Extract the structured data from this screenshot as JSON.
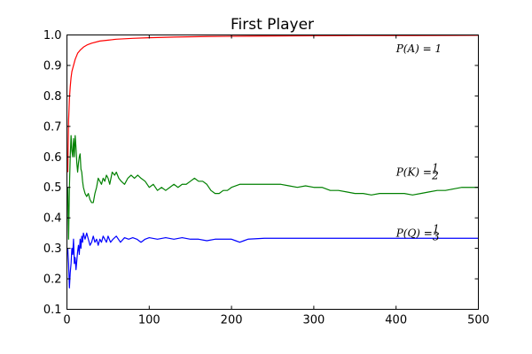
{
  "chart_data": {
    "type": "line",
    "title": "First Player",
    "xlabel": "",
    "ylabel": "",
    "xlim": [
      0,
      500
    ],
    "ylim": [
      0.1,
      1.0
    ],
    "xticks": [
      0,
      100,
      200,
      300,
      400,
      500
    ],
    "yticks": [
      0.1,
      0.2,
      0.3,
      0.4,
      0.5,
      0.6,
      0.7,
      0.8,
      0.9,
      1.0
    ],
    "xtick_labels": [
      "0",
      "100",
      "200",
      "300",
      "400",
      "500"
    ],
    "ytick_labels": [
      "0.1",
      "0.2",
      "0.3",
      "0.4",
      "0.5",
      "0.6",
      "0.7",
      "0.8",
      "0.9",
      "1.0"
    ],
    "grid": false,
    "series": [
      {
        "color": "#ff0000",
        "points": [
          [
            1,
            0.55
          ],
          [
            2,
            0.72
          ],
          [
            3,
            0.79
          ],
          [
            4,
            0.83
          ],
          [
            5,
            0.86
          ],
          [
            6,
            0.88
          ],
          [
            8,
            0.9
          ],
          [
            10,
            0.92
          ],
          [
            13,
            0.94
          ],
          [
            16,
            0.95
          ],
          [
            20,
            0.96
          ],
          [
            25,
            0.968
          ],
          [
            30,
            0.973
          ],
          [
            40,
            0.98
          ],
          [
            50,
            0.983
          ],
          [
            60,
            0.986
          ],
          [
            80,
            0.989
          ],
          [
            100,
            0.991
          ],
          [
            130,
            0.993
          ],
          [
            170,
            0.995
          ],
          [
            220,
            0.996
          ],
          [
            280,
            0.997
          ],
          [
            350,
            0.998
          ],
          [
            420,
            0.998
          ],
          [
            500,
            0.999
          ]
        ]
      },
      {
        "color": "#008000",
        "points": [
          [
            1,
            0.5
          ],
          [
            2,
            0.33
          ],
          [
            3,
            0.5
          ],
          [
            4,
            0.6
          ],
          [
            5,
            0.67
          ],
          [
            6,
            0.62
          ],
          [
            7,
            0.6
          ],
          [
            8,
            0.66
          ],
          [
            9,
            0.6
          ],
          [
            10,
            0.67
          ],
          [
            11,
            0.63
          ],
          [
            12,
            0.58
          ],
          [
            13,
            0.55
          ],
          [
            14,
            0.58
          ],
          [
            15,
            0.6
          ],
          [
            16,
            0.61
          ],
          [
            17,
            0.56
          ],
          [
            18,
            0.55
          ],
          [
            19,
            0.52
          ],
          [
            20,
            0.5
          ],
          [
            22,
            0.48
          ],
          [
            24,
            0.47
          ],
          [
            26,
            0.48
          ],
          [
            28,
            0.46
          ],
          [
            30,
            0.45
          ],
          [
            32,
            0.45
          ],
          [
            34,
            0.48
          ],
          [
            36,
            0.5
          ],
          [
            38,
            0.53
          ],
          [
            40,
            0.52
          ],
          [
            42,
            0.51
          ],
          [
            44,
            0.53
          ],
          [
            46,
            0.52
          ],
          [
            48,
            0.54
          ],
          [
            50,
            0.53
          ],
          [
            52,
            0.51
          ],
          [
            55,
            0.55
          ],
          [
            58,
            0.54
          ],
          [
            60,
            0.55
          ],
          [
            63,
            0.53
          ],
          [
            66,
            0.52
          ],
          [
            70,
            0.51
          ],
          [
            74,
            0.53
          ],
          [
            78,
            0.54
          ],
          [
            82,
            0.53
          ],
          [
            86,
            0.54
          ],
          [
            90,
            0.53
          ],
          [
            95,
            0.52
          ],
          [
            100,
            0.5
          ],
          [
            105,
            0.51
          ],
          [
            110,
            0.49
          ],
          [
            115,
            0.5
          ],
          [
            120,
            0.49
          ],
          [
            125,
            0.5
          ],
          [
            130,
            0.51
          ],
          [
            135,
            0.5
          ],
          [
            140,
            0.51
          ],
          [
            145,
            0.51
          ],
          [
            150,
            0.52
          ],
          [
            155,
            0.53
          ],
          [
            160,
            0.52
          ],
          [
            165,
            0.52
          ],
          [
            170,
            0.51
          ],
          [
            175,
            0.49
          ],
          [
            180,
            0.48
          ],
          [
            185,
            0.48
          ],
          [
            190,
            0.49
          ],
          [
            195,
            0.49
          ],
          [
            200,
            0.5
          ],
          [
            210,
            0.51
          ],
          [
            220,
            0.51
          ],
          [
            230,
            0.51
          ],
          [
            240,
            0.51
          ],
          [
            250,
            0.51
          ],
          [
            260,
            0.51
          ],
          [
            270,
            0.505
          ],
          [
            280,
            0.5
          ],
          [
            290,
            0.505
          ],
          [
            300,
            0.5
          ],
          [
            310,
            0.5
          ],
          [
            320,
            0.49
          ],
          [
            330,
            0.49
          ],
          [
            340,
            0.485
          ],
          [
            350,
            0.48
          ],
          [
            360,
            0.48
          ],
          [
            370,
            0.475
          ],
          [
            380,
            0.48
          ],
          [
            390,
            0.48
          ],
          [
            400,
            0.48
          ],
          [
            410,
            0.48
          ],
          [
            420,
            0.475
          ],
          [
            430,
            0.48
          ],
          [
            440,
            0.485
          ],
          [
            450,
            0.49
          ],
          [
            460,
            0.49
          ],
          [
            470,
            0.495
          ],
          [
            480,
            0.5
          ],
          [
            490,
            0.5
          ],
          [
            500,
            0.5
          ]
        ]
      },
      {
        "color": "#0000ff",
        "points": [
          [
            1,
            0.3
          ],
          [
            2,
            0.25
          ],
          [
            3,
            0.17
          ],
          [
            4,
            0.22
          ],
          [
            5,
            0.25
          ],
          [
            6,
            0.3
          ],
          [
            7,
            0.28
          ],
          [
            8,
            0.33
          ],
          [
            9,
            0.25
          ],
          [
            10,
            0.27
          ],
          [
            11,
            0.23
          ],
          [
            12,
            0.26
          ],
          [
            13,
            0.29
          ],
          [
            14,
            0.31
          ],
          [
            15,
            0.28
          ],
          [
            16,
            0.33
          ],
          [
            17,
            0.3
          ],
          [
            18,
            0.34
          ],
          [
            19,
            0.32
          ],
          [
            20,
            0.35
          ],
          [
            22,
            0.33
          ],
          [
            24,
            0.35
          ],
          [
            26,
            0.33
          ],
          [
            28,
            0.31
          ],
          [
            30,
            0.32
          ],
          [
            32,
            0.34
          ],
          [
            34,
            0.32
          ],
          [
            36,
            0.33
          ],
          [
            38,
            0.31
          ],
          [
            40,
            0.33
          ],
          [
            42,
            0.32
          ],
          [
            44,
            0.34
          ],
          [
            46,
            0.33
          ],
          [
            48,
            0.32
          ],
          [
            50,
            0.34
          ],
          [
            53,
            0.32
          ],
          [
            56,
            0.33
          ],
          [
            60,
            0.34
          ],
          [
            65,
            0.32
          ],
          [
            70,
            0.335
          ],
          [
            75,
            0.33
          ],
          [
            80,
            0.335
          ],
          [
            85,
            0.33
          ],
          [
            90,
            0.32
          ],
          [
            95,
            0.33
          ],
          [
            100,
            0.335
          ],
          [
            110,
            0.33
          ],
          [
            120,
            0.335
          ],
          [
            130,
            0.33
          ],
          [
            140,
            0.335
          ],
          [
            150,
            0.33
          ],
          [
            160,
            0.33
          ],
          [
            170,
            0.325
          ],
          [
            180,
            0.33
          ],
          [
            190,
            0.33
          ],
          [
            200,
            0.33
          ],
          [
            205,
            0.325
          ],
          [
            210,
            0.32
          ],
          [
            215,
            0.325
          ],
          [
            220,
            0.33
          ],
          [
            240,
            0.333
          ],
          [
            260,
            0.333
          ],
          [
            280,
            0.333
          ],
          [
            300,
            0.333
          ],
          [
            330,
            0.333
          ],
          [
            360,
            0.333
          ],
          [
            400,
            0.333
          ],
          [
            450,
            0.333
          ],
          [
            500,
            0.333
          ]
        ]
      }
    ],
    "annotations": [
      {
        "text_prefix": "P(A) = 1",
        "frac_num": "",
        "frac_den": "",
        "x": 400,
        "y": 0.955
      },
      {
        "text_prefix": "P(K) = ",
        "frac_num": "1",
        "frac_den": "2",
        "x": 400,
        "y": 0.55
      },
      {
        "text_prefix": "P(Q) = ",
        "frac_num": "1",
        "frac_den": "3",
        "x": 400,
        "y": 0.35
      }
    ]
  }
}
